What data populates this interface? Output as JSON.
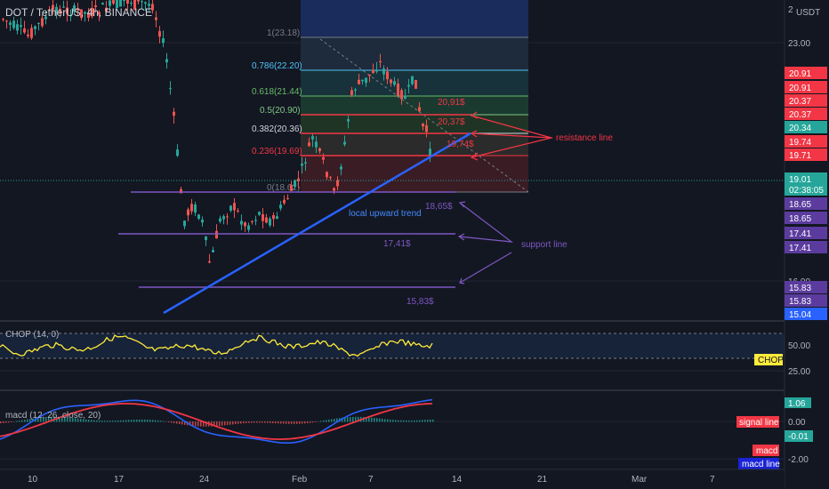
{
  "header": {
    "symbol_title": "DOT / TetherUS, 4h, BINANCE"
  },
  "price_axis": {
    "currency": "USDT",
    "top_label": "2",
    "ticks": [
      "23.00",
      "16.00"
    ],
    "tags": [
      {
        "label": "20.91",
        "color": "#f23645"
      },
      {
        "label": "20.91",
        "color": "#f23645"
      },
      {
        "label": "20.37",
        "color": "#f23645"
      },
      {
        "label": "20.37",
        "color": "#f23645"
      },
      {
        "label": "20.34",
        "color": "#26a69a"
      },
      {
        "label": "19.74",
        "color": "#f23645"
      },
      {
        "label": "19.71",
        "color": "#f23645"
      },
      {
        "label": "19.01",
        "color": "#26a69a"
      },
      {
        "label": "02:38:05",
        "color": "#26a69a"
      },
      {
        "label": "18.65",
        "color": "#5b3c9e"
      },
      {
        "label": "18.65",
        "color": "#5b3c9e"
      },
      {
        "label": "17.41",
        "color": "#5b3c9e"
      },
      {
        "label": "17.41",
        "color": "#5b3c9e"
      },
      {
        "label": "15.83",
        "color": "#5b3c9e"
      },
      {
        "label": "15.83",
        "color": "#5b3c9e"
      },
      {
        "label": "15.04",
        "color": "#2962ff"
      }
    ]
  },
  "fib_levels": [
    {
      "label": "1(23.18)",
      "color": "#787b86"
    },
    {
      "label": "0.786(22.20)",
      "color": "#4fc3f7"
    },
    {
      "label": "0.618(21.44)",
      "color": "#66bb6a"
    },
    {
      "label": "0.5(20.90)",
      "color": "#81c784"
    },
    {
      "label": "0.382(20.36)",
      "color": "#d1d4dc"
    },
    {
      "label": "0.236(19.69)",
      "color": "#f23645"
    },
    {
      "label": "0(18.62)",
      "color": "#787b86"
    }
  ],
  "annotations": {
    "resistance_label": "resistance line",
    "support_label": "support line",
    "trend_label": "local upward trend",
    "price_labels": [
      "20,91$",
      "20,37$",
      "19,74$",
      "18,65$",
      "17,41$",
      "15,83$"
    ]
  },
  "chop": {
    "title": "CHOP (14, 0)",
    "axis": [
      "50.00",
      "25.00"
    ],
    "tag": "CHOP"
  },
  "macd": {
    "title": "macd (12, 26, close, 20)",
    "axis": [
      "1.06",
      "0.00",
      "-0.01",
      "-2.00"
    ],
    "tags": [
      "signal line",
      "macd",
      "macd line"
    ]
  },
  "time_axis": [
    "10",
    "17",
    "24",
    "Feb",
    "7",
    "14",
    "21",
    "Mar",
    "7"
  ],
  "colors": {
    "background": "#131722",
    "up": "#26a69a",
    "down": "#ef5350",
    "resistance": "#f23645",
    "support": "#7e57c2",
    "trend": "#2962ff",
    "chop_line": "#ffeb3b",
    "macd_line": "#2962ff",
    "signal_line": "#f23645"
  }
}
